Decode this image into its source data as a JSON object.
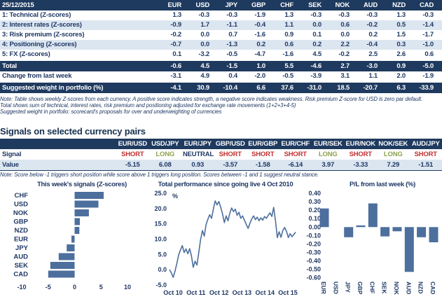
{
  "colors": {
    "navy_bg": "#1F3A5F",
    "navy_text": "#1F3864",
    "stripe": "#DCE6F1",
    "bar_blue": "#4D6F9D",
    "line_blue": "#4D6F9D",
    "short_red": "#C23030",
    "long_green": "#8CA24F",
    "neutral_dark": "#1F3864",
    "white": "#FFFFFF"
  },
  "scorecard": {
    "date_header": "25/12/2015",
    "currencies": [
      "EUR",
      "USD",
      "JPY",
      "GBP",
      "CHF",
      "SEK",
      "NOK",
      "AUD",
      "NZD",
      "CAD"
    ],
    "rows": [
      {
        "label": "1: Technical (Z-scores)",
        "values": [
          "1.3",
          "-0.3",
          "-0.3",
          "-1.9",
          "1.3",
          "-0.3",
          "-0.3",
          "-0.3",
          "1.3",
          "-0.3"
        ]
      },
      {
        "label": "2: Interest rates (Z-scores)",
        "values": [
          "-0.9",
          "1.7",
          "-1.1",
          "-0.4",
          "1.1",
          "0.0",
          "0.6",
          "-0.2",
          "0.5",
          "-1.4"
        ]
      },
      {
        "label": "3: Risk premium (Z-scores)",
        "values": [
          "-0.2",
          "0.0",
          "0.7",
          "-1.6",
          "0.9",
          "0.1",
          "0.0",
          "0.2",
          "1.5",
          "-1.7"
        ]
      },
      {
        "label": "4: Positioning (Z-scores)",
        "values": [
          "-0.7",
          "0.0",
          "-1.3",
          "0.2",
          "0.6",
          "0.2",
          "2.2",
          "-0.4",
          "0.3",
          "-1.0"
        ]
      },
      {
        "label": "5: FX (Z-scores)",
        "values": [
          "0.1",
          "-3.2",
          "-0.5",
          "-4.7",
          "-1.6",
          "4.5",
          "-0.2",
          "2.5",
          "2.6",
          "0.6"
        ]
      }
    ],
    "total_row": {
      "label": "Total",
      "values": [
        "-0.6",
        "4.5",
        "-1.5",
        "1.0",
        "5.5",
        "-4.6",
        "2.7",
        "-3.0",
        "0.9",
        "-5.0"
      ]
    },
    "change_row": {
      "label": "Change from last week",
      "values": [
        "-3.1",
        "4.9",
        "0.4",
        "-2.0",
        "-0.5",
        "-3.9",
        "3.1",
        "1.1",
        "2.0",
        "-1.9"
      ]
    },
    "weight_row": {
      "label": "Suggested weight in portfolio (%)",
      "values": [
        "-4.1",
        "30.9",
        "-10.4",
        "6.6",
        "37.6",
        "-31.0",
        "18.5",
        "-20.7",
        "6.3",
        "-33.9"
      ]
    },
    "notes": [
      "Note: Table shows weekly Z-scores from each currency. A positive score indicates strength, a negative score indicates weakness. Risk premium Z-score for USD is zero par default.",
      "Total shows sum of technical, interest rates, risk premium and positioning adjusted for exchange rate movements (1+2+3+4-5)",
      "Suggested weight in portfolio: scorecard's proposals for over and underweighting of currencies"
    ]
  },
  "signals": {
    "title": "Signals on selected currency pairs",
    "signal_label": "Signal",
    "value_label": "Value",
    "pairs": [
      "EUR/USD",
      "USD/JPY",
      "EUR/JPY",
      "GBP/USD",
      "EUR/GBP",
      "EUR/CHF",
      "EUR/SEK",
      "EUR/NOK",
      "NOK/SEK",
      "AUD/JPY"
    ],
    "signals": [
      "SHORT",
      "LONG",
      "NEUTRAL",
      "SHORT",
      "SHORT",
      "SHORT",
      "LONG",
      "SHORT",
      "LONG",
      "SHORT"
    ],
    "values": [
      "-5.15",
      "6.08",
      "0.93",
      "-3.57",
      "-1.58",
      "-6.14",
      "3.97",
      "-3.33",
      "7.29",
      "-1.51"
    ],
    "note": "Note: Score below -1 triggers short position while score above 1 triggers long position. Scores between -1 and 1 suggest neutral stance."
  },
  "chart_data": [
    {
      "type": "bar",
      "orientation": "horizontal",
      "title": "This week's signals (Z-scores)",
      "categories": [
        "CHF",
        "USD",
        "NOK",
        "GBP",
        "NZD",
        "EUR",
        "JPY",
        "AUD",
        "SEK",
        "CAD"
      ],
      "values": [
        5.5,
        4.5,
        2.7,
        1.0,
        0.9,
        -0.6,
        -1.5,
        -3.0,
        -4.6,
        -5.0
      ],
      "xlim": [
        -10,
        10
      ],
      "xticks": [
        -10,
        -5,
        0,
        5,
        10
      ],
      "grid": false,
      "legend": "none"
    },
    {
      "type": "line",
      "title": "Total performance since going live 4 Oct 2010",
      "ylabel": "%",
      "ylim": [
        -5,
        25
      ],
      "yticks": [
        25,
        20,
        15,
        10,
        5,
        0,
        -5
      ],
      "xticklabels": [
        "Oct 10",
        "Oct 11",
        "Oct 12",
        "Oct 13",
        "Oct 14",
        "Oct 15"
      ],
      "x_span_years": 5.23,
      "y": [
        0.0,
        -1.0,
        -2.5,
        -0.5,
        2.0,
        4.8,
        6.5,
        7.9,
        5.6,
        6.8,
        5.2,
        6.9,
        4.5,
        0.8,
        2.8,
        1.5,
        5.5,
        9.8,
        12.8,
        11.0,
        14.8,
        16.5,
        18.0,
        16.8,
        19.8,
        22.5,
        21.2,
        22.3,
        20.5,
        18.2,
        15.4,
        17.6,
        16.0,
        18.5,
        20.2,
        19.0,
        19.8,
        17.8,
        18.8,
        16.8,
        17.6,
        16.2,
        14.8,
        13.5,
        15.2,
        16.6,
        17.6,
        16.4,
        17.2,
        16.0,
        17.0,
        16.2,
        17.4,
        16.8,
        17.8,
        18.6,
        17.4,
        20.4,
        16.0,
        10.5,
        12.4,
        10.6,
        12.8,
        13.8,
        12.6,
        10.5,
        11.8,
        10.8,
        11.5,
        12.3
      ],
      "grid": false,
      "legend": "none"
    },
    {
      "type": "bar",
      "orientation": "vertical",
      "title": "P/L from last week (%)",
      "categories": [
        "EUR",
        "USD",
        "JPY",
        "GBP",
        "CHF",
        "SEK",
        "NOK",
        "AUD",
        "NZD",
        "CAD"
      ],
      "values": [
        0.22,
        0.0,
        -0.12,
        0.02,
        0.28,
        -0.11,
        -0.05,
        -0.53,
        -0.12,
        -0.18
      ],
      "ylim": [
        -0.6,
        0.4
      ],
      "yticks": [
        0.4,
        0.3,
        0.2,
        0.1,
        0.0,
        -0.1,
        -0.2,
        -0.3,
        -0.4,
        -0.5,
        -0.6
      ],
      "grid": false,
      "legend": "none"
    }
  ]
}
